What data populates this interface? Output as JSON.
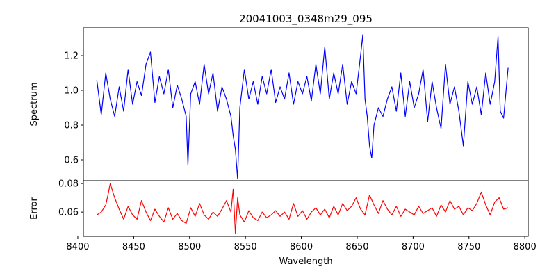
{
  "chart_data": [
    {
      "type": "line",
      "title": "20041003_0348m29_095",
      "xlabel": "",
      "ylabel": "Spectrum",
      "xlim": [
        8405,
        8803
      ],
      "ylim": [
        0.48,
        1.36
      ],
      "xticks": [
        8400,
        8450,
        8500,
        8550,
        8600,
        8650,
        8700,
        8750,
        8800
      ],
      "yticks": [
        0.6,
        0.8,
        1.0,
        1.2
      ],
      "ytick_labels": [
        "0.6",
        "0.8",
        "1.0",
        "1.2"
      ],
      "grid": false,
      "series": [
        {
          "color": "#0000ff",
          "x": [
            8417,
            8421,
            8425,
            8429,
            8433,
            8437,
            8441,
            8445,
            8449,
            8453,
            8457,
            8461,
            8465,
            8469,
            8473,
            8477,
            8481,
            8485,
            8489,
            8493,
            8497,
            8498.5,
            8501,
            8505,
            8509,
            8513,
            8517,
            8521,
            8525,
            8529,
            8533,
            8537,
            8539,
            8541,
            8543,
            8545,
            8549,
            8553,
            8557,
            8561,
            8565,
            8569,
            8573,
            8577,
            8581,
            8585,
            8589,
            8593,
            8597,
            8601,
            8605,
            8609,
            8613,
            8617,
            8621,
            8625,
            8629,
            8633,
            8637,
            8641,
            8645,
            8649,
            8653,
            8655,
            8657,
            8659,
            8661,
            8663,
            8665,
            8669,
            8673,
            8677,
            8681,
            8685,
            8689,
            8693,
            8697,
            8701,
            8705,
            8709,
            8713,
            8717,
            8721,
            8725,
            8729,
            8733,
            8737,
            8741,
            8745,
            8749,
            8753,
            8757,
            8761,
            8765,
            8769,
            8773,
            8776,
            8778,
            8781,
            8785
          ],
          "values": [
            1.06,
            0.86,
            1.1,
            0.95,
            0.85,
            1.02,
            0.88,
            1.12,
            0.92,
            1.05,
            0.97,
            1.15,
            1.22,
            0.93,
            1.08,
            0.98,
            1.12,
            0.9,
            1.03,
            0.95,
            0.85,
            0.57,
            0.98,
            1.05,
            0.92,
            1.15,
            0.98,
            1.1,
            0.88,
            1.02,
            0.95,
            0.85,
            0.74,
            0.66,
            0.49,
            0.9,
            1.12,
            0.95,
            1.05,
            0.92,
            1.08,
            0.98,
            1.12,
            0.93,
            1.02,
            0.95,
            1.1,
            0.92,
            1.05,
            0.98,
            1.08,
            0.94,
            1.15,
            0.98,
            1.25,
            0.95,
            1.1,
            0.98,
            1.15,
            0.92,
            1.05,
            0.98,
            1.2,
            1.32,
            0.95,
            0.85,
            0.68,
            0.61,
            0.8,
            0.9,
            0.85,
            0.95,
            1.02,
            0.88,
            1.1,
            0.85,
            1.05,
            0.9,
            0.98,
            1.12,
            0.82,
            1.05,
            0.9,
            0.78,
            1.15,
            0.92,
            1.02,
            0.88,
            0.68,
            1.05,
            0.92,
            1.02,
            0.86,
            1.1,
            0.92,
            1.05,
            1.31,
            0.88,
            0.84,
            1.13
          ]
        }
      ]
    },
    {
      "type": "line",
      "title": "",
      "xlabel": "Wavelength",
      "ylabel": "Error",
      "xlim": [
        8405,
        8803
      ],
      "ylim": [
        0.043,
        0.082
      ],
      "xticks": [
        8400,
        8450,
        8500,
        8550,
        8600,
        8650,
        8700,
        8750,
        8800
      ],
      "yticks": [
        0.06,
        0.08
      ],
      "ytick_labels": [
        "0.06",
        "0.08"
      ],
      "grid": false,
      "series": [
        {
          "color": "#ff0000",
          "x": [
            8417,
            8421,
            8425,
            8427,
            8429,
            8433,
            8437,
            8441,
            8445,
            8449,
            8453,
            8457,
            8461,
            8465,
            8469,
            8473,
            8477,
            8481,
            8485,
            8489,
            8493,
            8497,
            8501,
            8505,
            8509,
            8513,
            8517,
            8521,
            8525,
            8529,
            8533,
            8537,
            8539,
            8541,
            8543,
            8545,
            8549,
            8553,
            8557,
            8561,
            8565,
            8569,
            8573,
            8577,
            8581,
            8585,
            8589,
            8593,
            8597,
            8601,
            8605,
            8609,
            8613,
            8617,
            8621,
            8625,
            8629,
            8633,
            8637,
            8641,
            8645,
            8649,
            8653,
            8657,
            8661,
            8665,
            8669,
            8673,
            8677,
            8681,
            8685,
            8689,
            8693,
            8697,
            8701,
            8705,
            8709,
            8713,
            8717,
            8721,
            8725,
            8729,
            8733,
            8737,
            8741,
            8745,
            8749,
            8753,
            8757,
            8761,
            8765,
            8769,
            8773,
            8777,
            8781,
            8785
          ],
          "values": [
            0.058,
            0.06,
            0.065,
            0.072,
            0.08,
            0.07,
            0.062,
            0.055,
            0.064,
            0.058,
            0.055,
            0.068,
            0.06,
            0.054,
            0.062,
            0.057,
            0.053,
            0.063,
            0.055,
            0.059,
            0.054,
            0.052,
            0.063,
            0.057,
            0.066,
            0.058,
            0.055,
            0.06,
            0.057,
            0.062,
            0.068,
            0.06,
            0.076,
            0.045,
            0.07,
            0.058,
            0.053,
            0.061,
            0.056,
            0.054,
            0.06,
            0.056,
            0.058,
            0.061,
            0.057,
            0.06,
            0.055,
            0.066,
            0.057,
            0.061,
            0.055,
            0.06,
            0.063,
            0.058,
            0.062,
            0.056,
            0.064,
            0.058,
            0.066,
            0.061,
            0.064,
            0.07,
            0.062,
            0.058,
            0.072,
            0.065,
            0.059,
            0.068,
            0.062,
            0.058,
            0.064,
            0.057,
            0.062,
            0.06,
            0.058,
            0.064,
            0.059,
            0.061,
            0.063,
            0.057,
            0.065,
            0.06,
            0.068,
            0.062,
            0.064,
            0.058,
            0.063,
            0.061,
            0.066,
            0.074,
            0.065,
            0.058,
            0.067,
            0.07,
            0.062,
            0.063
          ]
        }
      ]
    }
  ]
}
